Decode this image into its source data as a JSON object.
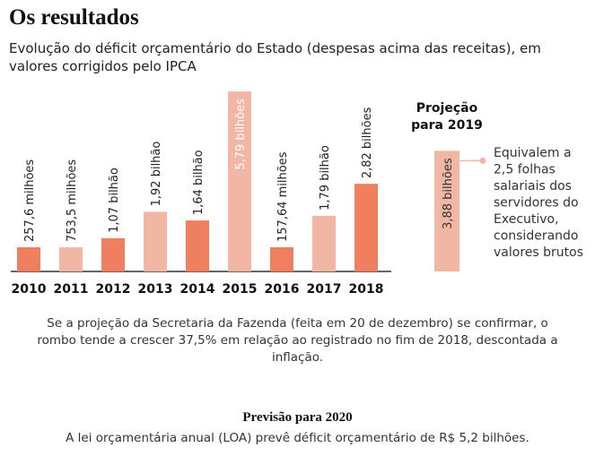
{
  "header": {
    "title": "Os resultados",
    "subtitle": "Evolução do déficit orçamentário do Estado (despesas acima das receitas), em valores corrigidos pelo IPCA"
  },
  "chart_data": {
    "type": "bar",
    "unit": "R$ bilhões",
    "categories": [
      "2010",
      "2011",
      "2012",
      "2013",
      "2014",
      "2015",
      "2016",
      "2017",
      "2018"
    ],
    "values": [
      0.2576,
      0.7535,
      1.07,
      1.92,
      1.64,
      5.79,
      0.15764,
      1.79,
      2.82
    ],
    "data_labels": [
      "257,6 milhões",
      "753,5 milhões",
      "1,07 bilhão",
      "1,92 bilhão",
      "1,64 bilhão",
      "5,79 bilhões",
      "157,64 milhões",
      "1,79 bilhão",
      "2,82 bilhões"
    ],
    "projection": {
      "label_line1": "Projeção",
      "label_line2": "para 2019",
      "value": 3.88,
      "data_label": "3,88 bilhões",
      "annotation": [
        "Equivalem a",
        "2,5 folhas",
        "salariais dos",
        "servidores do",
        "Executivo,",
        "considerando",
        "valores brutos"
      ]
    },
    "colors": {
      "dark": "#f07f5f",
      "light": "#f2b6a4",
      "projection": "#f2b6a4",
      "axis": "#333333"
    }
  },
  "notes": {
    "projection_text": "Se a projeção da Secretaria da Fazenda (feita em 20 de dezembro) se confirmar, o rombo tende a crescer 37,5% em relação ao registrado no fim de 2018, descontada a inflação.",
    "forecast_title": "Previsão para 2020",
    "forecast_text": "A lei orçamentária anual (LOA) prevê déficit orçamentário de R$ 5,2 bilhões."
  }
}
